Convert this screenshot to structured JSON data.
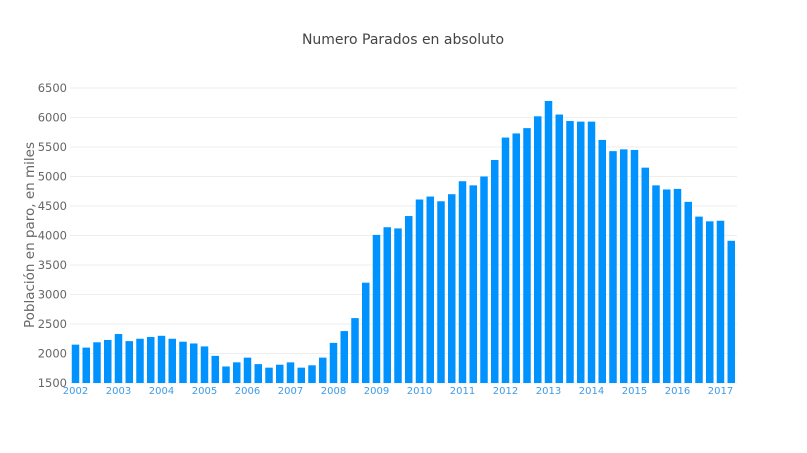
{
  "chart_data": {
    "type": "bar",
    "title": "Numero Parados en absoluto",
    "xlabel": "",
    "ylabel": "Población en paro, en miles",
    "ylim": [
      1500,
      6500
    ],
    "yticks": [
      1500,
      2000,
      2500,
      3000,
      3500,
      4000,
      4500,
      5000,
      5500,
      6000,
      6500
    ],
    "xtick_labels": [
      "2002",
      "2003",
      "2004",
      "2005",
      "2006",
      "2007",
      "2008",
      "2009",
      "2010",
      "2011",
      "2012",
      "2013",
      "2014",
      "2015",
      "2016",
      "2017"
    ],
    "x_start": "2002",
    "x_frequency": "quarterly",
    "grid": true,
    "bar_color": "#0093ff",
    "values": [
      2150,
      2100,
      2190,
      2230,
      2330,
      2210,
      2250,
      2280,
      2300,
      2250,
      2200,
      2170,
      2120,
      1960,
      1780,
      1850,
      1930,
      1820,
      1760,
      1810,
      1850,
      1760,
      1800,
      1930,
      2180,
      2380,
      2600,
      3200,
      4010,
      4140,
      4120,
      4330,
      4610,
      4660,
      4580,
      4700,
      4920,
      4850,
      5000,
      5280,
      5660,
      5730,
      5820,
      6020,
      6280,
      6050,
      5940,
      5930,
      5930,
      5620,
      5430,
      5460,
      5450,
      5150,
      4850,
      4780,
      4790,
      4570,
      4320,
      4240,
      4250,
      3910
    ]
  }
}
